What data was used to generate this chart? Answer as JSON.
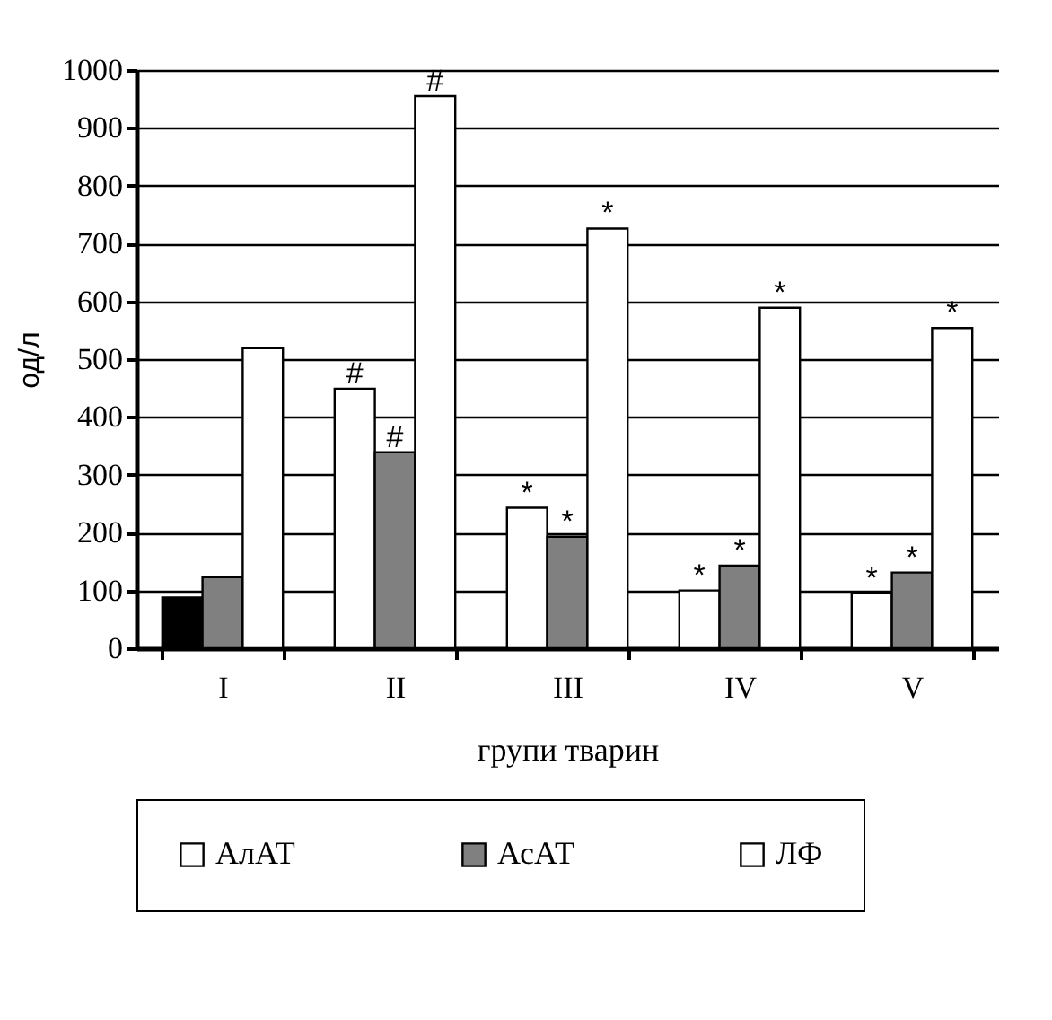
{
  "chart_data": {
    "type": "bar",
    "xlabel": "групи тварин",
    "ylabel": "од/л",
    "categories": [
      "I",
      "II",
      "III",
      "IV",
      "V"
    ],
    "series": [
      {
        "name": "АлАТ",
        "color": "#ffffff",
        "colors": [
          "#000000",
          "#ffffff",
          "#ffffff",
          "#ffffff",
          "#ffffff"
        ],
        "values": [
          88,
          449,
          243,
          100,
          95
        ]
      },
      {
        "name": "АсАТ",
        "color": "#808080",
        "values": [
          123,
          339,
          193,
          143,
          131
        ]
      },
      {
        "name": "ЛФ",
        "color": "#ffffff",
        "values": [
          519,
          955,
          726,
          589,
          554
        ]
      }
    ],
    "ylim": [
      0,
      1000
    ],
    "yticks": [
      0,
      100,
      200,
      300,
      400,
      500,
      600,
      700,
      800,
      900,
      1000
    ],
    "grid": "y",
    "legend": "bottom",
    "annotations": [
      {
        "text": "#",
        "y": 449
      },
      {
        "text": "#",
        "x": "II",
        "y": 339
      },
      {
        "text": "#",
        "y": 955
      },
      {
        "text": "*",
        "y": 243
      },
      {
        "text": "*",
        "x": "III",
        "y": 193
      },
      {
        "text": "*",
        "y": 726
      },
      {
        "text": "*",
        "y": 100
      },
      {
        "text": "*",
        "x": "IV",
        "y": 143
      },
      {
        "text": "*",
        "y": 589
      },
      {
        "text": "*",
        "y": 95
      },
      {
        "text": "*",
        "x": "V",
        "y": 131
      },
      {
        "text": "*",
        "y": 554
      }
    ]
  }
}
